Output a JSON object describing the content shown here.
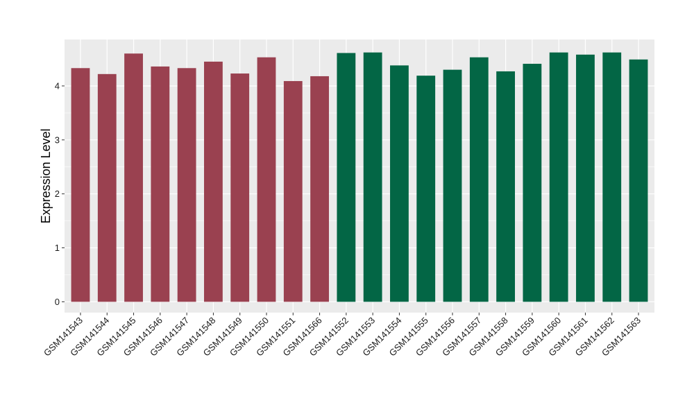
{
  "chart_data": {
    "type": "bar",
    "title": "",
    "xlabel": "",
    "ylabel": "Expression Level",
    "ylim": [
      -0.2,
      4.86
    ],
    "yticks": [
      0,
      1,
      2,
      3,
      4
    ],
    "grid": true,
    "categories": [
      "GSM141543",
      "GSM141544",
      "GSM141545",
      "GSM141546",
      "GSM141547",
      "GSM141548",
      "GSM141549",
      "GSM141550",
      "GSM141551",
      "GSM141566",
      "GSM141552",
      "GSM141553",
      "GSM141554",
      "GSM141555",
      "GSM141556",
      "GSM141557",
      "GSM141558",
      "GSM141559",
      "GSM141560",
      "GSM141561",
      "GSM141562",
      "GSM141563"
    ],
    "values": [
      4.33,
      4.22,
      4.6,
      4.36,
      4.33,
      4.45,
      4.23,
      4.53,
      4.09,
      4.18,
      4.61,
      4.62,
      4.38,
      4.19,
      4.3,
      4.53,
      4.27,
      4.41,
      4.62,
      4.58,
      4.62,
      4.49
    ],
    "group_sizes": [
      10,
      12
    ],
    "colors": [
      "#9a4150",
      "#036645"
    ],
    "panel_background": "#ebebeb",
    "grid_color": "#ffffff"
  }
}
